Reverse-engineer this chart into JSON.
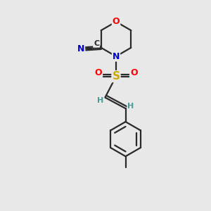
{
  "bg_color": "#e8e8e8",
  "bond_color": "#2a2a2a",
  "O_color": "#ff0000",
  "N_color": "#0000cc",
  "S_color": "#ccaa00",
  "C_color": "#2a2a2a",
  "H_color": "#4a9a9a",
  "figsize": [
    3.0,
    3.0
  ],
  "dpi": 100,
  "xlim": [
    0,
    10
  ],
  "ylim": [
    0,
    10
  ]
}
